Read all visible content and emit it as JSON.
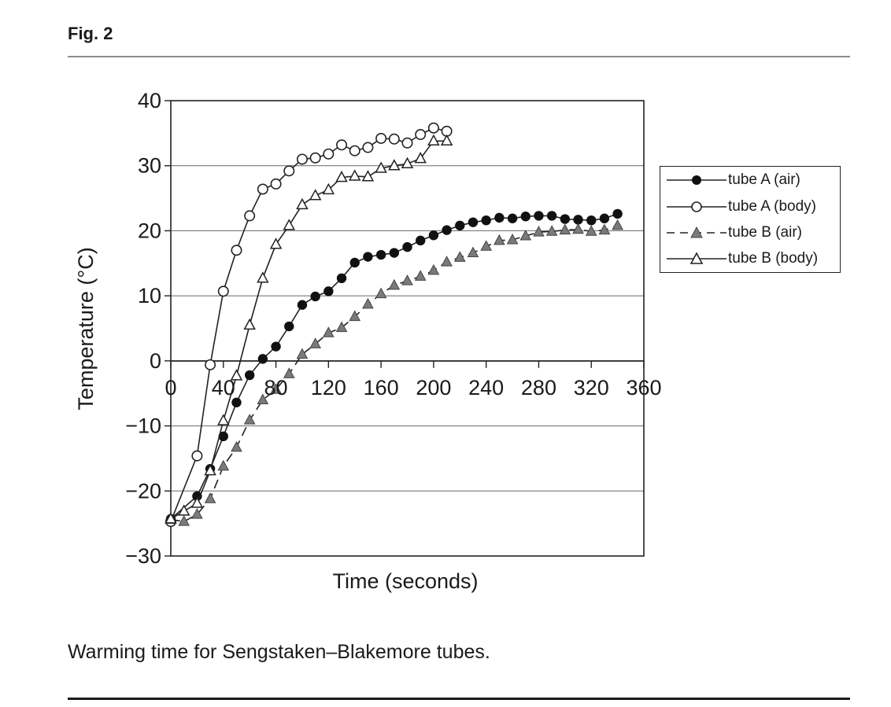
{
  "figure": {
    "label": "Fig. 2",
    "caption": "Warming time for Sengstaken–Blakemore tubes."
  },
  "colors": {
    "line": "#222222",
    "grid": "#7a7a7a",
    "marker_gray": "#7a7a7a"
  },
  "chart_data": {
    "type": "line",
    "title": "",
    "xlabel": "Time (seconds)",
    "ylabel": "Temperature (°C)",
    "xlim": [
      0,
      360
    ],
    "ylim": [
      -30,
      40
    ],
    "x_ticks": [
      "0",
      "40",
      "80",
      "120",
      "160",
      "200",
      "240",
      "280",
      "320",
      "360"
    ],
    "y_ticks": [
      "40",
      "30",
      "20",
      "10",
      "0",
      "−10",
      "−20",
      "−30"
    ],
    "grid": "horizontal",
    "legend_position": "right",
    "series": [
      {
        "name": "tube A (air)",
        "marker": "filled-circle",
        "line_style": "solid",
        "x": [
          0,
          20,
          30,
          40,
          50,
          60,
          70,
          80,
          90,
          100,
          110,
          120,
          130,
          140,
          150,
          160,
          170,
          180,
          190,
          200,
          210,
          220,
          230,
          240,
          250,
          260,
          270,
          280,
          290,
          300,
          310,
          320,
          330,
          340
        ],
        "y": [
          -24.3,
          -20.8,
          -16.6,
          -11.6,
          -6.4,
          -2.2,
          0.3,
          2.2,
          5.3,
          8.6,
          9.9,
          10.7,
          12.7,
          15.1,
          16.0,
          16.3,
          16.6,
          17.5,
          18.5,
          19.3,
          20.1,
          20.8,
          21.3,
          21.6,
          22.0,
          21.9,
          22.2,
          22.3,
          22.3,
          21.8,
          21.7,
          21.6,
          21.9,
          22.6
        ]
      },
      {
        "name": "tube A (body)",
        "marker": "open-circle",
        "line_style": "solid",
        "x": [
          0,
          20,
          30,
          40,
          50,
          60,
          70,
          80,
          90,
          100,
          110,
          120,
          130,
          140,
          150,
          160,
          170,
          180,
          190,
          200,
          210
        ],
        "y": [
          -24.7,
          -14.6,
          -0.6,
          10.7,
          17.0,
          22.3,
          26.4,
          27.2,
          29.2,
          31.0,
          31.2,
          31.8,
          33.2,
          32.3,
          32.8,
          34.2,
          34.1,
          33.5,
          34.8,
          35.8,
          35.3
        ]
      },
      {
        "name": "tube B (air)",
        "marker": "gray-triangle",
        "line_style": "dashed",
        "x": [
          0,
          10,
          20,
          30,
          40,
          50,
          60,
          70,
          80,
          90,
          100,
          110,
          120,
          130,
          140,
          150,
          160,
          170,
          180,
          190,
          200,
          210,
          220,
          230,
          240,
          250,
          260,
          270,
          280,
          290,
          300,
          310,
          320,
          330,
          340
        ],
        "y": [
          -24.4,
          -24.7,
          -23.6,
          -21.2,
          -16.2,
          -13.3,
          -9.1,
          -6.0,
          -4.4,
          -2.0,
          1.0,
          2.6,
          4.3,
          5.1,
          6.8,
          8.7,
          10.3,
          11.6,
          12.3,
          13.0,
          13.9,
          15.2,
          15.9,
          16.6,
          17.6,
          18.5,
          18.6,
          19.2,
          19.8,
          19.9,
          20.1,
          20.2,
          19.9,
          20.1,
          20.8
        ]
      },
      {
        "name": "tube B (body)",
        "marker": "open-triangle",
        "line_style": "solid",
        "x": [
          0,
          10,
          20,
          30,
          40,
          50,
          60,
          70,
          80,
          90,
          100,
          110,
          120,
          130,
          140,
          150,
          160,
          170,
          180,
          190,
          200,
          210
        ],
        "y": [
          -24.3,
          -23.1,
          -21.9,
          -16.9,
          -9.2,
          -2.3,
          5.5,
          12.7,
          17.9,
          20.8,
          24.0,
          25.4,
          26.3,
          28.2,
          28.4,
          28.3,
          29.6,
          30.0,
          30.3,
          31.1,
          33.8,
          33.8
        ]
      }
    ]
  }
}
